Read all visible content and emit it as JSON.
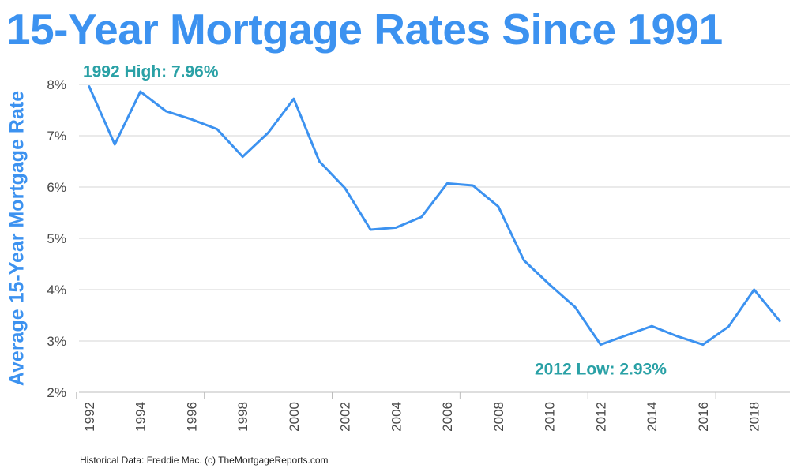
{
  "chart_data": {
    "type": "line",
    "title": "15-Year Mortgage Rates Since 1991",
    "ylabel": "Average 15-Year Mortgage Rate",
    "xlabel": "",
    "footer": "Historical Data: Freddie Mac.  (c) TheMortgageReports.com",
    "color": "#3c92f0",
    "annotation_color": "#2aa1a6",
    "grid": "horizontal",
    "xlim": [
      1991.6,
      2019.4
    ],
    "ylim": [
      2,
      8
    ],
    "y_ticks": [
      2,
      3,
      4,
      5,
      6,
      7,
      8
    ],
    "y_tick_labels": [
      "2%",
      "3%",
      "4%",
      "5%",
      "6%",
      "7%",
      "8%"
    ],
    "x_ticks": [
      1992,
      1994,
      1996,
      1998,
      2000,
      2002,
      2004,
      2006,
      2008,
      2010,
      2012,
      2014,
      2016,
      2018
    ],
    "x_tick_labels": [
      "1992",
      "1994",
      "1996",
      "1998",
      "2000",
      "2002",
      "2004",
      "2006",
      "2008",
      "2010",
      "2012",
      "2014",
      "2016",
      "2018"
    ],
    "series": [
      {
        "x": [
          1992,
          1993,
          1994,
          1995,
          1996,
          1997,
          1998,
          1999,
          2000,
          2001,
          2002,
          2003,
          2004,
          2005,
          2006,
          2007,
          2008,
          2009,
          2010,
          2011,
          2012,
          2013,
          2014,
          2015,
          2016,
          2017,
          2018,
          2019
        ],
        "values": [
          7.96,
          6.83,
          7.86,
          7.48,
          7.32,
          7.13,
          6.59,
          7.06,
          7.72,
          6.5,
          5.98,
          5.17,
          5.21,
          5.42,
          6.07,
          6.03,
          5.62,
          4.57,
          4.1,
          3.66,
          2.93,
          3.11,
          3.29,
          3.09,
          2.93,
          3.28,
          4.0,
          3.39
        ]
      }
    ],
    "annotations": [
      {
        "text": "1992 High: 7.96%",
        "x": 1992,
        "y": 7.96
      },
      {
        "text": "2012 Low: 2.93%",
        "x": 2012,
        "y": 2.93
      }
    ]
  }
}
